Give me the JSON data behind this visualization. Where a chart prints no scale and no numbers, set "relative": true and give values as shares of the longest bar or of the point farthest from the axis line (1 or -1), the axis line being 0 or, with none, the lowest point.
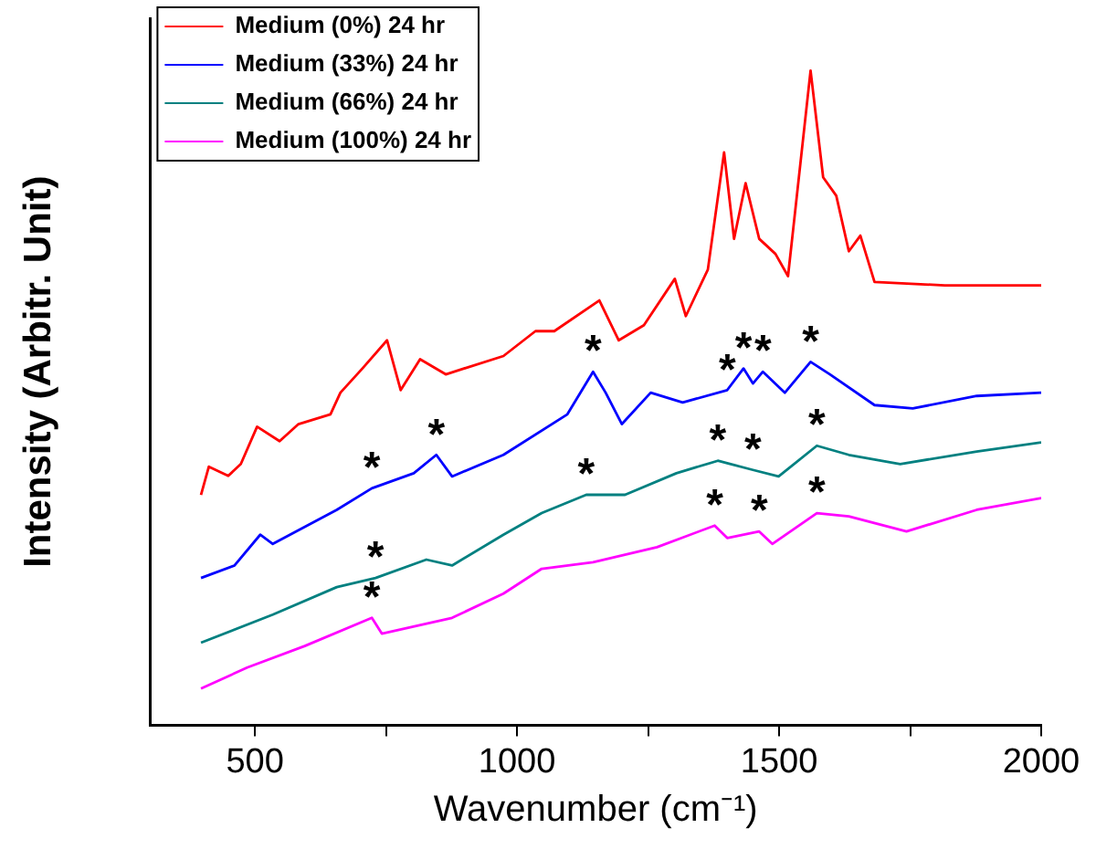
{
  "chart_data": {
    "type": "line",
    "xlabel": "Wavenumber (cm⁻¹)",
    "ylabel": "Intensity (Arbitr. Unit)",
    "xlim": [
      300,
      2000
    ],
    "xticks": [
      500,
      {
        "value": 750,
        "label": null
      },
      1000,
      {
        "value": 1250,
        "label": null
      },
      1500,
      {
        "value": 1750,
        "label": null
      },
      2000
    ],
    "relative": true,
    "legend": "top left",
    "marker": "none",
    "line_style": "solid",
    "series": [
      {
        "name": "Medium (0%) 24 hr",
        "color": "#ff0000",
        "x": [
          397,
          412,
          449,
          473,
          504,
          547,
          583,
          644,
          663,
          705,
          752,
          778,
          815,
          864,
          974,
          1035,
          1071,
          1157,
          1194,
          1242,
          1301,
          1322,
          1364,
          1395,
          1414,
          1436,
          1462,
          1493,
          1517,
          1560,
          1584,
          1609,
          1633,
          1655,
          1682,
          1816,
          2000
        ],
        "values": [
          0.352,
          0.395,
          0.381,
          0.399,
          0.456,
          0.434,
          0.46,
          0.475,
          0.508,
          0.545,
          0.588,
          0.512,
          0.559,
          0.536,
          0.564,
          0.602,
          0.602,
          0.649,
          0.588,
          0.611,
          0.682,
          0.625,
          0.696,
          0.875,
          0.743,
          0.828,
          0.743,
          0.72,
          0.686,
          1,
          0.837,
          0.809,
          0.724,
          0.748,
          0.677,
          0.672,
          0.672
        ]
      },
      {
        "name": "Medium (33%) 24 hr",
        "color": "#0000ff",
        "x": [
          397,
          461,
          510,
          534,
          656,
          723,
          803,
          846,
          876,
          974,
          1096,
          1145,
          1169,
          1200,
          1255,
          1316,
          1401,
          1432,
          1450,
          1469,
          1511,
          1560,
          1597,
          1682,
          1755,
          1877,
          2000
        ],
        "values": [
          0.225,
          0.244,
          0.291,
          0.277,
          0.329,
          0.362,
          0.385,
          0.413,
          0.38,
          0.413,
          0.475,
          0.54,
          0.508,
          0.46,
          0.508,
          0.493,
          0.512,
          0.545,
          0.522,
          0.54,
          0.508,
          0.555,
          0.536,
          0.489,
          0.484,
          0.503,
          0.508
        ]
      },
      {
        "name": "Medium (66%) 24 hr",
        "color": "#008080",
        "x": [
          397,
          534,
          656,
          730,
          827,
          876,
          974,
          1047,
          1132,
          1206,
          1304,
          1383,
          1450,
          1499,
          1572,
          1633,
          1731,
          1877,
          2000
        ],
        "values": [
          0.126,
          0.169,
          0.211,
          0.225,
          0.253,
          0.244,
          0.291,
          0.324,
          0.352,
          0.352,
          0.385,
          0.404,
          0.39,
          0.38,
          0.427,
          0.413,
          0.399,
          0.418,
          0.432
        ]
      },
      {
        "name": "Medium (100%) 24 hr",
        "color": "#ff00ff",
        "x": [
          397,
          485,
          595,
          723,
          742,
          876,
          974,
          1047,
          1145,
          1267,
          1377,
          1401,
          1462,
          1487,
          1572,
          1633,
          1743,
          1877,
          2000
        ],
        "values": [
          0.056,
          0.088,
          0.121,
          0.164,
          0.14,
          0.164,
          0.201,
          0.239,
          0.249,
          0.272,
          0.305,
          0.286,
          0.296,
          0.277,
          0.324,
          0.319,
          0.296,
          0.329,
          0.347
        ]
      }
    ],
    "annotations": [
      {
        "text": "*",
        "x": 723,
        "y": 0.362
      },
      {
        "text": "*",
        "x": 846,
        "y": 0.413
      },
      {
        "text": "*",
        "x": 1145,
        "y": 0.54
      },
      {
        "text": "*",
        "x": 1401,
        "y": 0.512
      },
      {
        "text": "*",
        "x": 1432,
        "y": 0.545
      },
      {
        "text": "*",
        "x": 1469,
        "y": 0.54
      },
      {
        "text": "*",
        "x": 1560,
        "y": 0.555
      },
      {
        "text": "*",
        "x": 730,
        "y": 0.225
      },
      {
        "text": "*",
        "x": 1132,
        "y": 0.352
      },
      {
        "text": "*",
        "x": 1383,
        "y": 0.404
      },
      {
        "text": "*",
        "x": 1450,
        "y": 0.39
      },
      {
        "text": "*",
        "x": 1572,
        "y": 0.427
      },
      {
        "text": "*",
        "x": 723,
        "y": 0.164
      },
      {
        "text": "*",
        "x": 1377,
        "y": 0.305
      },
      {
        "text": "*",
        "x": 1462,
        "y": 0.296
      },
      {
        "text": "*",
        "x": 1572,
        "y": 0.324
      }
    ]
  }
}
